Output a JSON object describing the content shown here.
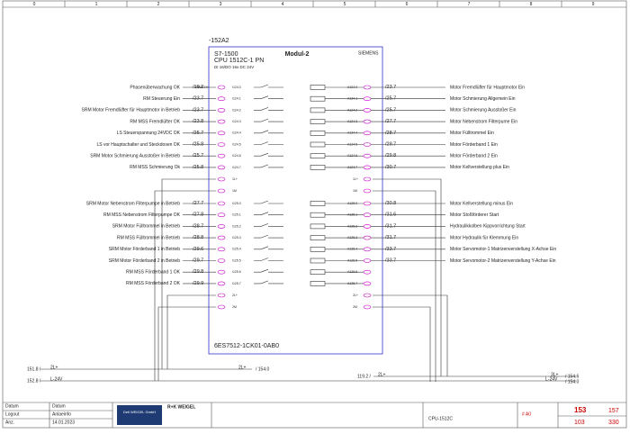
{
  "ruler": [
    "0",
    "1",
    "2",
    "3",
    "4",
    "5",
    "6",
    "7",
    "8",
    "9"
  ],
  "module": {
    "tag": "-152A2",
    "family": "S7-1500",
    "cpu": "CPU 1512C-1 PN",
    "io": "DI 16/DO 16x DC 24V",
    "name": "Modul-2",
    "brand": "SIEMENS",
    "order": "6ES7512-1CK01-0AB0",
    "note": "CRM2.1H"
  },
  "inputs": [
    {
      "label": "Phasenüberwachung OK",
      "ref": "/19.2",
      "addr": "I124.0"
    },
    {
      "label": "RM Steuerung Ein",
      "ref": "/23.7",
      "addr": "I124.1"
    },
    {
      "label": "SRM Motor Fremdlüfter für Hauptmotor in Betrieb",
      "ref": "/23.7",
      "addr": "I124.2"
    },
    {
      "label": "RM MSS Fremdlüfter OK",
      "ref": "/23.8",
      "addr": "I124.3"
    },
    {
      "label": "LS Steuerspannung 24VDC OK",
      "ref": "/25.7",
      "addr": "I124.4"
    },
    {
      "label": "LS vor Hauptschalter und Steckdosen OK",
      "ref": "/25.8",
      "addr": "I124.5"
    },
    {
      "label": "SRM Motor Schmierung Ausstoßer in Betrieb",
      "ref": "/25.7",
      "addr": "I124.6"
    },
    {
      "label": "RM MSS Schmierung Ok",
      "ref": "/25.8",
      "addr": "I124.7"
    },
    {
      "label": "SRM Motor Nebenstrom Filterpumpe in Betrieb",
      "ref": "/27.7",
      "addr": "I125.0"
    },
    {
      "label": "RM MSS Nebenstrom Filterpumpe OK",
      "ref": "/27.8",
      "addr": "I125.1"
    },
    {
      "label": "SRM Motor Fülltrommel in Betrieb",
      "ref": "/28.7",
      "addr": "I125.2"
    },
    {
      "label": "RM MSS Fülltrommel in Betrieb",
      "ref": "/28.8",
      "addr": "I125.3"
    },
    {
      "label": "SRM Motor Förderband 1 in Betrieb",
      "ref": "/29.6",
      "addr": "I125.4"
    },
    {
      "label": "SRM Motor Förderband 2 in Betrieb",
      "ref": "/29.7",
      "addr": "I125.5"
    },
    {
      "label": "RM MSS Förderband 1 OK",
      "ref": "/29.8",
      "addr": "I125.6"
    },
    {
      "label": "RM MSS Förderband 2 OK",
      "ref": "/29.9",
      "addr": "I125.7"
    }
  ],
  "supply_in": [
    "1L+",
    "1M",
    "2L+",
    "2M"
  ],
  "supply_out": [
    "1L+",
    "1M",
    "2L+",
    "2M"
  ],
  "outputs": [
    {
      "addr": "A124.0",
      "ref": "/23.7",
      "label": "Motor Fremdlüfter für Hauptmotor Ein"
    },
    {
      "addr": "A124.1",
      "ref": "/25.7",
      "label": "Motor Schmierung Allgemein Ein"
    },
    {
      "addr": "A124.2",
      "ref": "/25.7",
      "label": "Motor Schmierung Ausstoßer Ein"
    },
    {
      "addr": "A124.3",
      "ref": "/27.7",
      "label": "Motor Nebenstrom Filterpume Ein"
    },
    {
      "addr": "A124.4",
      "ref": "/28.7",
      "label": "Motor Fülltrommel Ein"
    },
    {
      "addr": "A124.5",
      "ref": "/29.7",
      "label": "Motor Förderband 1 Ein"
    },
    {
      "addr": "A124.6",
      "ref": "/29.8",
      "label": "Motor Förderband 2 Ein"
    },
    {
      "addr": "A124.7",
      "ref": "/30.7",
      "label": "Motor Kellverstellung plus Ein"
    },
    {
      "addr": "A125.0",
      "ref": "/30.8",
      "label": "Motor Kellverstellung minus Ein"
    },
    {
      "addr": "A125.1",
      "ref": "/31.6",
      "label": "Motor Stoßförderer Start"
    },
    {
      "addr": "A125.2",
      "ref": "/31.7",
      "label": "Hydraulikkolben Kippvorrichtung Start"
    },
    {
      "addr": "A125.3",
      "ref": "/31.7",
      "label": "Motor Hydraulik für Klemmung Ein"
    },
    {
      "addr": "A125.4",
      "ref": "/33.7",
      "label": "Motor Servomotor-1 Matrizenverstellung X-Achse Ein"
    },
    {
      "addr": "A125.5",
      "ref": "/33.7",
      "label": "Motor Servomotor-2 Matrizenverstellung Y-Achse Ein"
    },
    {
      "addr": "A125.6"
    },
    {
      "addr": "A125.7"
    }
  ],
  "bus": {
    "left_ref_1": "151.8 /",
    "left_label_1": "2L+",
    "left_ref_2": "152.8 /",
    "left_label_2": "L-24V",
    "mid_label": "2L+",
    "mid_ref": "/ 154.0",
    "right_in_ref": "119.2 /",
    "right_in_label": "2L+",
    "right_label_1": "3L+",
    "right_ref_1": "/ 154.6",
    "right_label_2": "L-24V",
    "right_ref_2": "/ 154.0"
  },
  "footer": {
    "date_1": "Datum",
    "date_2": "Datum",
    "logout": "Logout",
    "info": "Anlaeinfo",
    "count": "Anz.",
    "date_value": "14.01.2023",
    "company": "R+K WEIGEL",
    "company_logo": "Dell WEIGEL GmbH",
    "page_title": "CPU-1512C",
    "sheet": "# A0",
    "page": "153",
    "page_total": "157",
    "sub_page": "103",
    "sub_total": "330"
  }
}
